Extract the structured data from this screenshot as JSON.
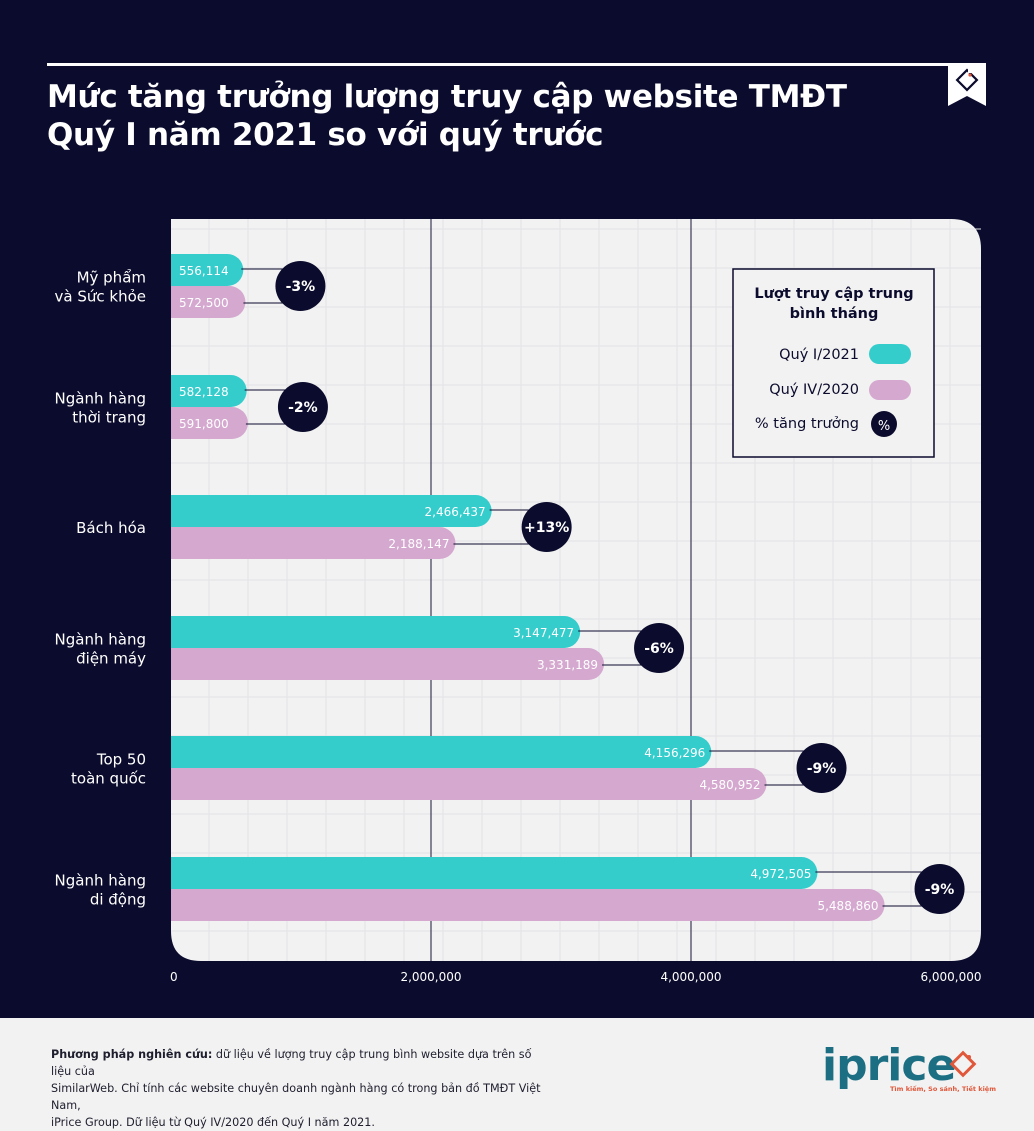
{
  "header": {
    "title_line1": "Mức tăng trưởng lượng truy cập website TMĐT",
    "title_line2": "Quý I năm 2021 so với quý trước"
  },
  "colors": {
    "background": "#0b0b2d",
    "q1_2021": "#35cccc",
    "q4_2020": "#d4a8cf",
    "growth_badge": "#0b0b2d",
    "plot_bg": "#f2f2f2"
  },
  "chart_data": {
    "type": "bar",
    "orientation": "horizontal",
    "categories": [
      [
        "Mỹ phẩm",
        "và Sức khỏe"
      ],
      [
        "Ngành hàng",
        "thời trang"
      ],
      [
        "Bách hóa"
      ],
      [
        "Ngành hàng",
        "điện máy"
      ],
      [
        "Top 50",
        "toàn quốc"
      ],
      [
        "Ngành hàng",
        "di động"
      ]
    ],
    "series": [
      {
        "name": "Quý I/2021",
        "values": [
          556114,
          582128,
          2466437,
          3147477,
          4156296,
          4972505
        ],
        "labels": [
          "556,114",
          "582,128",
          "2,466,437",
          "3,147,477",
          "4,156,296",
          "4,972,505"
        ]
      },
      {
        "name": "Quý IV/2020",
        "values": [
          572500,
          591800,
          2188147,
          3331189,
          4580952,
          5488860
        ],
        "labels": [
          "572,500",
          "591,800",
          "2,188,147",
          "3,331,189",
          "4,580,952",
          "5,488,860"
        ]
      }
    ],
    "growth_labels": [
      "-3%",
      "-2%",
      "+13%",
      "-6%",
      "-9%",
      "-9%"
    ],
    "xlim": [
      0,
      6000000
    ],
    "xticks": [
      0,
      2000000,
      4000000,
      6000000
    ],
    "xtick_labels": [
      "0",
      "2,000,000",
      "4,000,000",
      "6,000,000"
    ],
    "grid": true,
    "legend": {
      "title_line1": "Lượt truy cập trung",
      "title_line2": "bình tháng",
      "items": [
        "Quý I/2021",
        "Quý IV/2020",
        "% tăng trưởng"
      ],
      "growth_symbol": "%",
      "placement": "top-right"
    }
  },
  "footer": {
    "method_label": "Phương pháp nghiên cứu:",
    "method_line1": " dữ liệu về lượng truy cập trung bình website dựa trên số liệu của",
    "method_line2": "SimilarWeb. Chỉ tính các website chuyên doanh ngành hàng có trong bản đồ TMĐT Việt Nam,",
    "method_line3": "iPrice Group. Dữ liệu từ Quý IV/2020 đến Quý I năm 2021.",
    "logo_text": "iprice",
    "logo_tagline": "Tìm kiếm, So sánh, Tiết kiệm"
  }
}
